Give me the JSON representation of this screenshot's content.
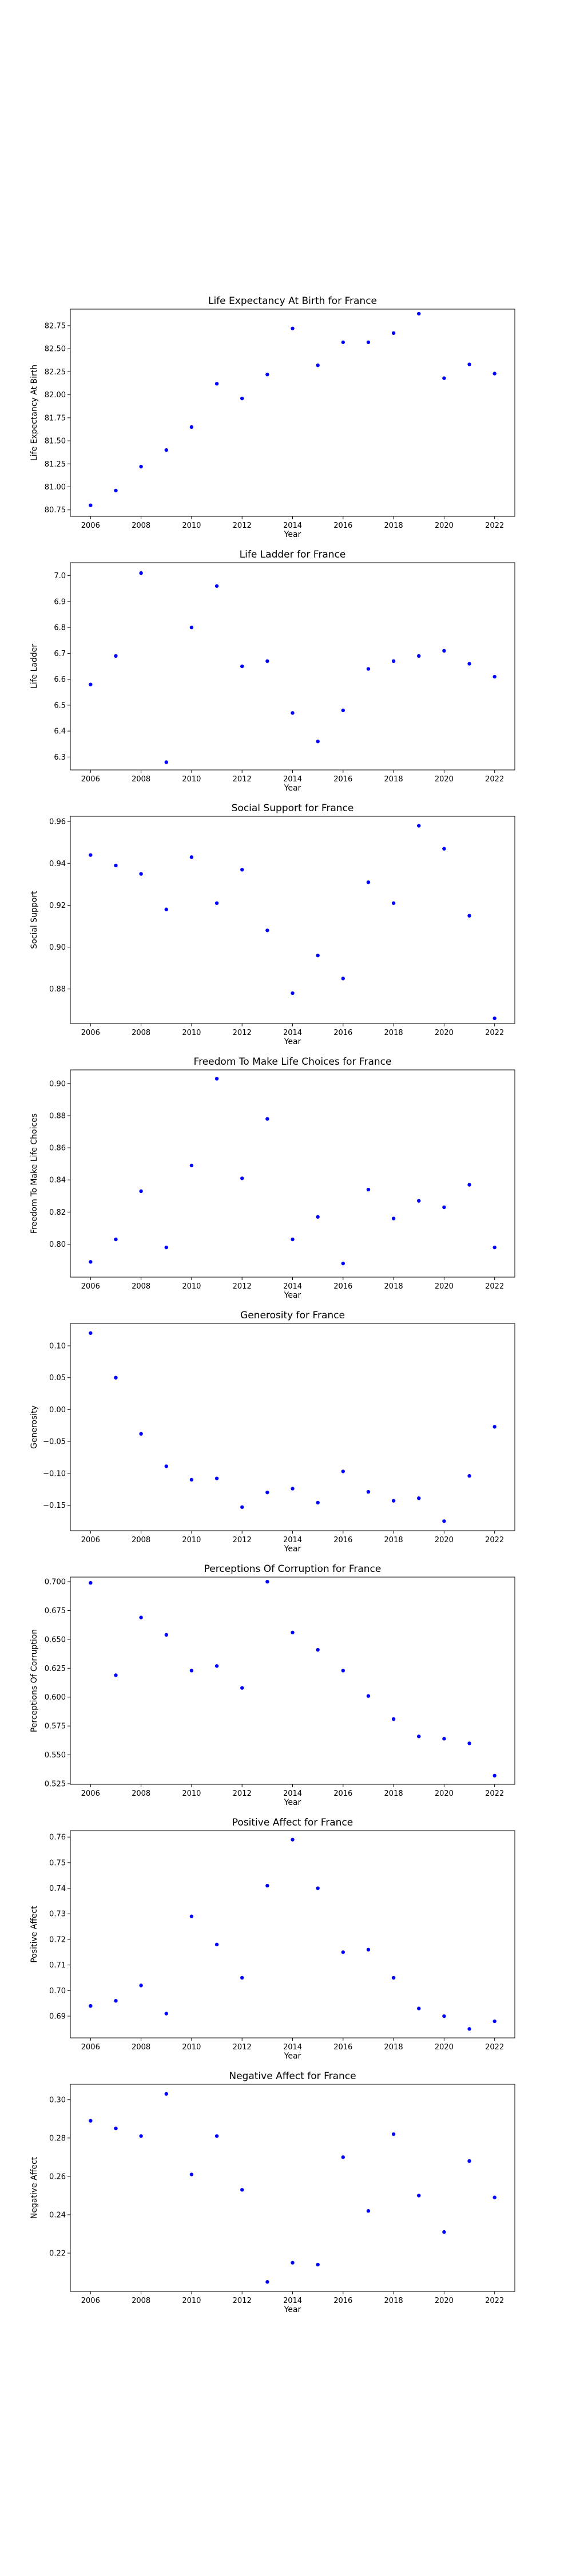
{
  "chart_data": [
    {
      "type": "scatter",
      "title": "Life Expectancy At Birth for France",
      "xlabel": "Year",
      "ylabel": "Life Expectancy At Birth",
      "xlim": [
        2005.2,
        2022.8
      ],
      "ylim": [
        80.68,
        82.93
      ],
      "xticks": [
        2006,
        2008,
        2010,
        2012,
        2014,
        2016,
        2018,
        2020,
        2022
      ],
      "yticks": [
        80.75,
        81.0,
        81.25,
        81.5,
        81.75,
        82.0,
        82.25,
        82.5,
        82.75
      ],
      "ytick_labels": [
        "80.75",
        "81.00",
        "81.25",
        "81.50",
        "81.75",
        "82.00",
        "82.25",
        "82.50",
        "82.75"
      ],
      "x": [
        2006,
        2007,
        2008,
        2009,
        2010,
        2011,
        2012,
        2013,
        2014,
        2015,
        2016,
        2017,
        2018,
        2019,
        2020,
        2021,
        2022
      ],
      "y": [
        80.8,
        80.96,
        81.22,
        81.4,
        81.65,
        82.12,
        81.96,
        82.22,
        82.72,
        82.32,
        82.57,
        82.57,
        82.67,
        82.88,
        82.18,
        82.33,
        82.23
      ],
      "color": "#0000ff",
      "grid": false
    },
    {
      "type": "scatter",
      "title": "Life Ladder for France",
      "xlabel": "Year",
      "ylabel": "Life Ladder",
      "xlim": [
        2005.2,
        2022.8
      ],
      "ylim": [
        6.25,
        7.05
      ],
      "xticks": [
        2006,
        2008,
        2010,
        2012,
        2014,
        2016,
        2018,
        2020,
        2022
      ],
      "yticks": [
        6.3,
        6.4,
        6.5,
        6.6,
        6.7,
        6.8,
        6.9,
        7.0
      ],
      "ytick_labels": [
        "6.3",
        "6.4",
        "6.5",
        "6.6",
        "6.7",
        "6.8",
        "6.9",
        "7.0"
      ],
      "x": [
        2006,
        2007,
        2008,
        2009,
        2010,
        2011,
        2012,
        2013,
        2014,
        2015,
        2016,
        2017,
        2018,
        2019,
        2020,
        2021,
        2022
      ],
      "y": [
        6.58,
        6.69,
        7.01,
        6.28,
        6.8,
        6.96,
        6.65,
        6.67,
        6.47,
        6.36,
        6.48,
        6.64,
        6.67,
        6.69,
        6.71,
        6.66,
        6.61
      ],
      "color": "#0000ff",
      "grid": false
    },
    {
      "type": "scatter",
      "title": "Social Support for France",
      "xlabel": "Year",
      "ylabel": "Social Support",
      "xlim": [
        2005.2,
        2022.8
      ],
      "ylim": [
        0.8635,
        0.9625
      ],
      "xticks": [
        2006,
        2008,
        2010,
        2012,
        2014,
        2016,
        2018,
        2020,
        2022
      ],
      "yticks": [
        0.88,
        0.9,
        0.92,
        0.94,
        0.96
      ],
      "ytick_labels": [
        "0.88",
        "0.90",
        "0.92",
        "0.94",
        "0.96"
      ],
      "x": [
        2006,
        2007,
        2008,
        2009,
        2010,
        2011,
        2012,
        2013,
        2014,
        2015,
        2016,
        2017,
        2018,
        2019,
        2020,
        2021,
        2022
      ],
      "y": [
        0.944,
        0.939,
        0.935,
        0.918,
        0.943,
        0.921,
        0.937,
        0.908,
        0.878,
        0.896,
        0.885,
        0.931,
        0.921,
        0.958,
        0.947,
        0.915,
        0.866
      ],
      "color": "#0000ff",
      "grid": false
    },
    {
      "type": "scatter",
      "title": "Freedom To Make Life Choices for France",
      "xlabel": "Year",
      "ylabel": "Freedom To Make Life Choices",
      "xlim": [
        2005.2,
        2022.8
      ],
      "ylim": [
        0.7795,
        0.9085
      ],
      "xticks": [
        2006,
        2008,
        2010,
        2012,
        2014,
        2016,
        2018,
        2020,
        2022
      ],
      "yticks": [
        0.8,
        0.82,
        0.84,
        0.86,
        0.88,
        0.9
      ],
      "ytick_labels": [
        "0.80",
        "0.82",
        "0.84",
        "0.86",
        "0.88",
        "0.90"
      ],
      "x": [
        2006,
        2007,
        2008,
        2009,
        2010,
        2011,
        2012,
        2013,
        2014,
        2015,
        2016,
        2017,
        2018,
        2019,
        2020,
        2021,
        2022
      ],
      "y": [
        0.789,
        0.803,
        0.833,
        0.798,
        0.849,
        0.903,
        0.841,
        0.878,
        0.803,
        0.817,
        0.788,
        0.834,
        0.816,
        0.827,
        0.823,
        0.837,
        0.798
      ],
      "color": "#0000ff",
      "grid": false
    },
    {
      "type": "scatter",
      "title": "Generosity for France",
      "xlabel": "Year",
      "ylabel": "Generosity",
      "xlim": [
        2005.2,
        2022.8
      ],
      "ylim": [
        -0.19,
        0.135
      ],
      "xticks": [
        2006,
        2008,
        2010,
        2012,
        2014,
        2016,
        2018,
        2020,
        2022
      ],
      "yticks": [
        -0.15,
        -0.1,
        -0.05,
        0.0,
        0.05,
        0.1
      ],
      "ytick_labels": [
        "−0.15",
        "−0.10",
        "−0.05",
        "0.00",
        "0.05",
        "0.10"
      ],
      "x": [
        2006,
        2007,
        2008,
        2009,
        2010,
        2011,
        2012,
        2013,
        2014,
        2015,
        2016,
        2017,
        2018,
        2019,
        2020,
        2021,
        2022
      ],
      "y": [
        0.12,
        0.05,
        -0.038,
        -0.089,
        -0.11,
        -0.108,
        -0.153,
        -0.13,
        -0.124,
        -0.146,
        -0.097,
        -0.129,
        -0.143,
        -0.139,
        -0.175,
        -0.104,
        -0.027
      ],
      "color": "#0000ff",
      "grid": false
    },
    {
      "type": "scatter",
      "title": "Perceptions Of Corruption for France",
      "xlabel": "Year",
      "ylabel": "Perceptions Of Corruption",
      "xlim": [
        2005.2,
        2022.8
      ],
      "ylim": [
        0.5245,
        0.704
      ],
      "xticks": [
        2006,
        2008,
        2010,
        2012,
        2014,
        2016,
        2018,
        2020,
        2022
      ],
      "yticks": [
        0.525,
        0.55,
        0.575,
        0.6,
        0.625,
        0.65,
        0.675,
        0.7
      ],
      "ytick_labels": [
        "0.525",
        "0.550",
        "0.575",
        "0.600",
        "0.625",
        "0.650",
        "0.675",
        "0.700"
      ],
      "x": [
        2006,
        2007,
        2008,
        2009,
        2010,
        2011,
        2012,
        2013,
        2014,
        2015,
        2016,
        2017,
        2018,
        2019,
        2020,
        2021,
        2022
      ],
      "y": [
        0.699,
        0.619,
        0.669,
        0.654,
        0.623,
        0.627,
        0.608,
        0.7,
        0.656,
        0.641,
        0.623,
        0.601,
        0.581,
        0.566,
        0.564,
        0.56,
        0.532
      ],
      "color": "#0000ff",
      "grid": false
    },
    {
      "type": "scatter",
      "title": "Positive Affect for France",
      "xlabel": "Year",
      "ylabel": "Positive Affect",
      "xlim": [
        2005.2,
        2022.8
      ],
      "ylim": [
        0.6815,
        0.7625
      ],
      "xticks": [
        2006,
        2008,
        2010,
        2012,
        2014,
        2016,
        2018,
        2020,
        2022
      ],
      "yticks": [
        0.69,
        0.7,
        0.71,
        0.72,
        0.73,
        0.74,
        0.75,
        0.76
      ],
      "ytick_labels": [
        "0.69",
        "0.70",
        "0.71",
        "0.72",
        "0.73",
        "0.74",
        "0.75",
        "0.76"
      ],
      "x": [
        2006,
        2007,
        2008,
        2009,
        2010,
        2011,
        2012,
        2013,
        2014,
        2015,
        2016,
        2017,
        2018,
        2019,
        2020,
        2021,
        2022
      ],
      "y": [
        0.694,
        0.696,
        0.702,
        0.691,
        0.729,
        0.718,
        0.705,
        0.741,
        0.759,
        0.74,
        0.715,
        0.716,
        0.705,
        0.693,
        0.69,
        0.685,
        0.688
      ],
      "color": "#0000ff",
      "grid": false
    },
    {
      "type": "scatter",
      "title": "Negative Affect for France",
      "xlabel": "Year",
      "ylabel": "Negative Affect",
      "xlim": [
        2005.2,
        2022.8
      ],
      "ylim": [
        0.2,
        0.308
      ],
      "xticks": [
        2006,
        2008,
        2010,
        2012,
        2014,
        2016,
        2018,
        2020,
        2022
      ],
      "yticks": [
        0.22,
        0.24,
        0.26,
        0.28,
        0.3
      ],
      "ytick_labels": [
        "0.22",
        "0.24",
        "0.26",
        "0.28",
        "0.30"
      ],
      "x": [
        2006,
        2007,
        2008,
        2009,
        2010,
        2011,
        2012,
        2013,
        2014,
        2015,
        2016,
        2017,
        2018,
        2019,
        2020,
        2021,
        2022
      ],
      "y": [
        0.289,
        0.285,
        0.281,
        0.303,
        0.261,
        0.281,
        0.253,
        0.205,
        0.215,
        0.214,
        0.27,
        0.242,
        0.282,
        0.25,
        0.231,
        0.268,
        0.249
      ],
      "color": "#0000ff",
      "grid": false
    }
  ]
}
